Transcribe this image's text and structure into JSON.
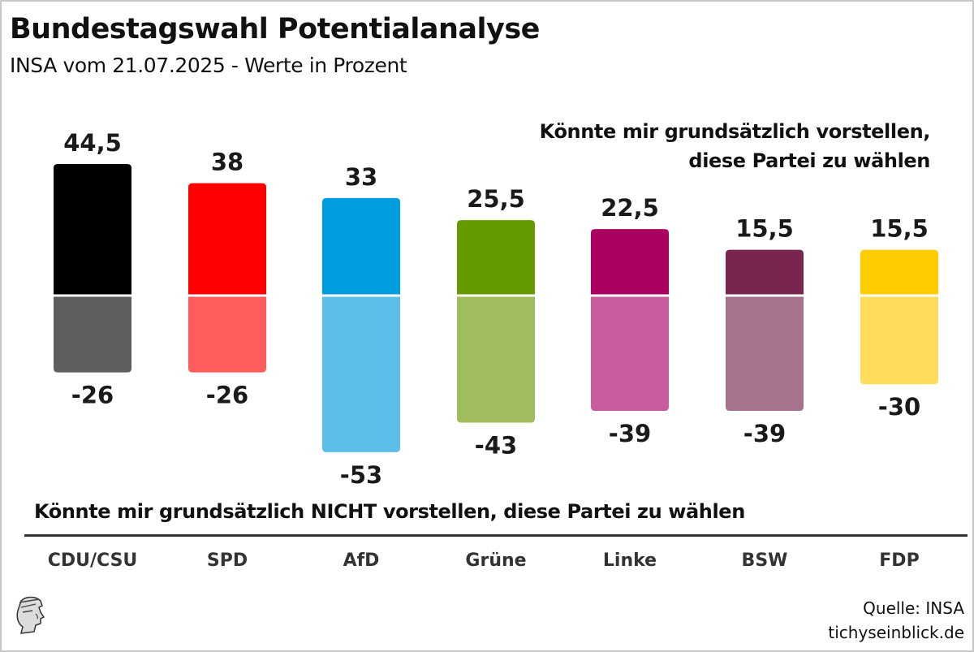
{
  "header": {
    "title": "Bundestagswahl Potentialanalyse",
    "subtitle": "INSA vom 21.07.2025 - Werte in Prozent"
  },
  "captions": {
    "positive_line1": "Könnte mir grundsätzlich vorstellen,",
    "positive_line2": "diese Partei zu wählen",
    "negative": "Könnte mir grundsätzlich NICHT vorstellen, diese Partei zu wählen"
  },
  "footer": {
    "source": "Quelle: INSA",
    "site": "tichyseinblick.de",
    "logo_icon": "hermes-head-icon"
  },
  "chart_data": {
    "type": "bar",
    "title": "Bundestagswahl Potentialanalyse",
    "subtitle": "INSA vom 21.07.2025 - Werte in Prozent",
    "xlabel": "",
    "ylabel": "Prozent",
    "categories": [
      "CDU/CSU",
      "SPD",
      "AfD",
      "Grüne",
      "Linke",
      "BSW",
      "FDP"
    ],
    "series": [
      {
        "name": "Könnte mir grundsätzlich vorstellen, diese Partei zu wählen",
        "values": [
          44.5,
          38,
          33,
          25.5,
          22.5,
          15.5,
          15.5
        ],
        "labels": [
          "44,5",
          "38",
          "33",
          "25,5",
          "22,5",
          "15,5",
          "15,5"
        ],
        "colors": [
          "#000000",
          "#ff0000",
          "#009ee0",
          "#659a00",
          "#aa0060",
          "#7a2550",
          "#ffcc00"
        ]
      },
      {
        "name": "Könnte mir grundsätzlich NICHT vorstellen, diese Partei zu wählen",
        "values": [
          -26,
          -26,
          -53,
          -43,
          -39,
          -39,
          -30
        ],
        "labels": [
          "-26",
          "-26",
          "-53",
          "-43",
          "-39",
          "-39",
          "-30"
        ],
        "colors": [
          "#5e5e5e",
          "#ff5c5c",
          "#5bbee9",
          "#a0bd5e",
          "#c95c9c",
          "#a7728d",
          "#ffdc5c"
        ]
      }
    ],
    "ylim": [
      -60,
      50
    ],
    "grid": false,
    "legend": "none"
  }
}
